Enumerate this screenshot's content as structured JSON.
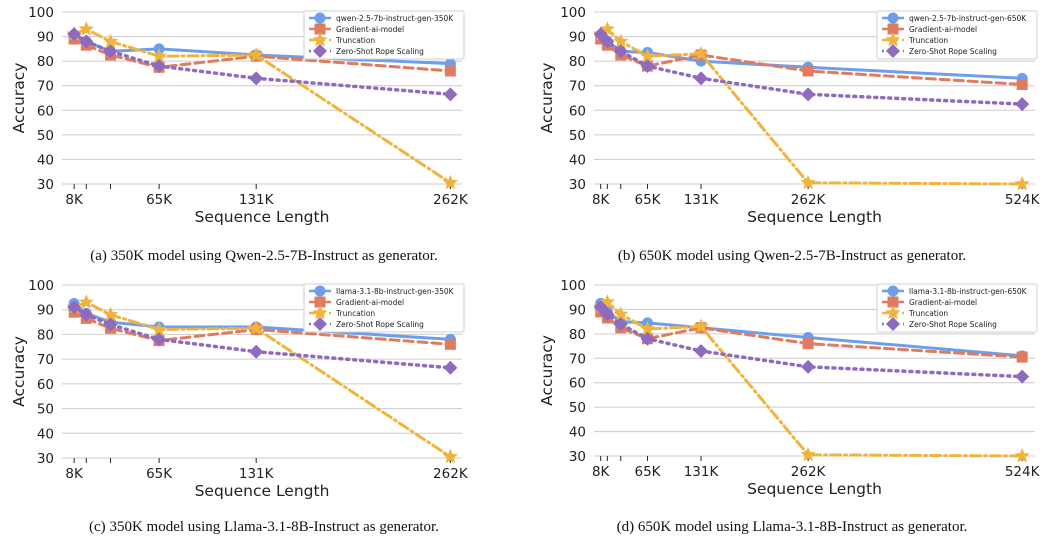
{
  "colors": {
    "generator": "#6d9eeb",
    "gradient": "#e07b5f",
    "truncation": "#f0b43c",
    "zeroshot": "#8e6bbf",
    "grid": "#cccccc",
    "axis": "#222222"
  },
  "chart_data": [
    {
      "type": "line",
      "panel_label": "(a)",
      "caption": "350K model using Qwen-2.5-7B-Instruct as generator.",
      "xlabel": "Sequence Length",
      "ylabel": "Accuracy",
      "ylim": [
        30,
        100
      ],
      "yticks": [
        30,
        40,
        50,
        60,
        70,
        80,
        90,
        100
      ],
      "xlim": [
        0,
        270000
      ],
      "xticks": [
        {
          "x": 8192,
          "label": "8K"
        },
        {
          "x": 16384,
          "label": ""
        },
        {
          "x": 32768,
          "label": ""
        },
        {
          "x": 65536,
          "label": "65K"
        },
        {
          "x": 131072,
          "label": "131K"
        },
        {
          "x": 262144,
          "label": "262K"
        }
      ],
      "grid": true,
      "legend_position": "top-right",
      "series": [
        {
          "name": "qwen-2.5-7b-instruct-gen-350K",
          "style": "generator",
          "x": [
            8192,
            16384,
            32768,
            65536,
            131072,
            262144
          ],
          "y": [
            90.5,
            88,
            84,
            85,
            82.5,
            79
          ]
        },
        {
          "name": "Gradient-ai-model",
          "style": "gradient",
          "x": [
            8192,
            16384,
            32768,
            65536,
            131072,
            262144
          ],
          "y": [
            89,
            86.5,
            82.5,
            77.5,
            82,
            76
          ]
        },
        {
          "name": "Truncation",
          "style": "truncation",
          "x": [
            8192,
            16384,
            32768,
            65536,
            131072,
            262144
          ],
          "y": [
            91,
            93,
            88,
            82,
            82.5,
            30.5
          ]
        },
        {
          "name": "Zero-Shot Rope Scaling",
          "style": "zeroshot",
          "x": [
            8192,
            16384,
            32768,
            65536,
            131072,
            262144
          ],
          "y": [
            91,
            88,
            84,
            78,
            73,
            66.5
          ]
        }
      ]
    },
    {
      "type": "line",
      "panel_label": "(b)",
      "caption": "650K model using Qwen-2.5-7B-Instruct as generator.",
      "xlabel": "Sequence Length",
      "ylabel": "Accuracy",
      "ylim": [
        30,
        100
      ],
      "yticks": [
        30,
        40,
        50,
        60,
        70,
        80,
        90,
        100
      ],
      "xlim": [
        0,
        540000
      ],
      "xticks": [
        {
          "x": 8192,
          "label": "8K"
        },
        {
          "x": 16384,
          "label": ""
        },
        {
          "x": 32768,
          "label": ""
        },
        {
          "x": 65536,
          "label": "65K"
        },
        {
          "x": 131072,
          "label": "131K"
        },
        {
          "x": 262144,
          "label": "262K"
        },
        {
          "x": 524288,
          "label": "524K"
        }
      ],
      "grid": true,
      "legend_position": "top-right",
      "series": [
        {
          "name": "qwen-2.5-7b-instruct-gen-650K",
          "style": "generator",
          "x": [
            8192,
            16384,
            32768,
            65536,
            131072,
            262144,
            524288
          ],
          "y": [
            90.5,
            88,
            84,
            83.5,
            80,
            77.5,
            73
          ]
        },
        {
          "name": "Gradient-ai-model",
          "style": "gradient",
          "x": [
            8192,
            16384,
            32768,
            65536,
            131072,
            262144,
            524288
          ],
          "y": [
            89,
            86.5,
            82.5,
            78,
            82.5,
            76,
            70.5
          ]
        },
        {
          "name": "Truncation",
          "style": "truncation",
          "x": [
            8192,
            16384,
            32768,
            65536,
            131072,
            262144,
            524288
          ],
          "y": [
            91,
            93,
            88,
            82,
            83,
            30.5,
            30
          ]
        },
        {
          "name": "Zero-Shot Rope Scaling",
          "style": "zeroshot",
          "x": [
            8192,
            16384,
            32768,
            65536,
            131072,
            262144,
            524288
          ],
          "y": [
            91,
            88,
            84,
            78,
            73,
            66.5,
            62.5
          ]
        }
      ]
    },
    {
      "type": "line",
      "panel_label": "(c)",
      "caption": "350K model using Llama-3.1-8B-Instruct as generator.",
      "xlabel": "Sequence Length",
      "ylabel": "Accuracy",
      "ylim": [
        30,
        100
      ],
      "yticks": [
        30,
        40,
        50,
        60,
        70,
        80,
        90,
        100
      ],
      "xlim": [
        0,
        270000
      ],
      "xticks": [
        {
          "x": 8192,
          "label": "8K"
        },
        {
          "x": 16384,
          "label": ""
        },
        {
          "x": 32768,
          "label": ""
        },
        {
          "x": 65536,
          "label": "65K"
        },
        {
          "x": 131072,
          "label": "131K"
        },
        {
          "x": 262144,
          "label": "262K"
        }
      ],
      "grid": true,
      "legend_position": "top-right",
      "series": [
        {
          "name": "llama-3.1-8b-instruct-gen-350K",
          "style": "generator",
          "x": [
            8192,
            16384,
            32768,
            65536,
            131072,
            262144
          ],
          "y": [
            92.5,
            88.5,
            85,
            83,
            83,
            78
          ]
        },
        {
          "name": "Gradient-ai-model",
          "style": "gradient",
          "x": [
            8192,
            16384,
            32768,
            65536,
            131072,
            262144
          ],
          "y": [
            89,
            86.5,
            82.5,
            77.5,
            82,
            76
          ]
        },
        {
          "name": "Truncation",
          "style": "truncation",
          "x": [
            8192,
            16384,
            32768,
            65536,
            131072,
            262144
          ],
          "y": [
            91,
            93,
            88,
            82,
            82.5,
            30.5
          ]
        },
        {
          "name": "Zero-Shot Rope Scaling",
          "style": "zeroshot",
          "x": [
            8192,
            16384,
            32768,
            65536,
            131072,
            262144
          ],
          "y": [
            91,
            88,
            84,
            78,
            73,
            66.5
          ]
        }
      ]
    },
    {
      "type": "line",
      "panel_label": "(d)",
      "caption": "650K model using Llama-3.1-8B-Instruct as generator.",
      "xlabel": "Sequence Length",
      "ylabel": "Accuracy",
      "ylim": [
        30,
        100
      ],
      "yticks": [
        30,
        40,
        50,
        60,
        70,
        80,
        90,
        100
      ],
      "xlim": [
        0,
        540000
      ],
      "xticks": [
        {
          "x": 8192,
          "label": "8K"
        },
        {
          "x": 16384,
          "label": ""
        },
        {
          "x": 32768,
          "label": ""
        },
        {
          "x": 65536,
          "label": "65K"
        },
        {
          "x": 131072,
          "label": "131K"
        },
        {
          "x": 262144,
          "label": "262K"
        },
        {
          "x": 524288,
          "label": "524K"
        }
      ],
      "grid": true,
      "legend_position": "top-right",
      "series": [
        {
          "name": "llama-3.1-8b-instruct-gen-650K",
          "style": "generator",
          "x": [
            8192,
            16384,
            32768,
            65536,
            131072,
            262144,
            524288
          ],
          "y": [
            92.5,
            89,
            85,
            84.5,
            82.5,
            78.5,
            71
          ]
        },
        {
          "name": "Gradient-ai-model",
          "style": "gradient",
          "x": [
            8192,
            16384,
            32768,
            65536,
            131072,
            262144,
            524288
          ],
          "y": [
            89,
            86.5,
            82.5,
            78,
            82.5,
            76,
            70.5
          ]
        },
        {
          "name": "Truncation",
          "style": "truncation",
          "x": [
            8192,
            16384,
            32768,
            65536,
            131072,
            262144,
            524288
          ],
          "y": [
            91,
            93,
            88,
            82,
            83,
            30.5,
            30
          ]
        },
        {
          "name": "Zero-Shot Rope Scaling",
          "style": "zeroshot",
          "x": [
            8192,
            16384,
            32768,
            65536,
            131072,
            262144,
            524288
          ],
          "y": [
            91,
            88,
            84,
            78,
            73,
            66.5,
            62.5
          ]
        }
      ]
    }
  ]
}
